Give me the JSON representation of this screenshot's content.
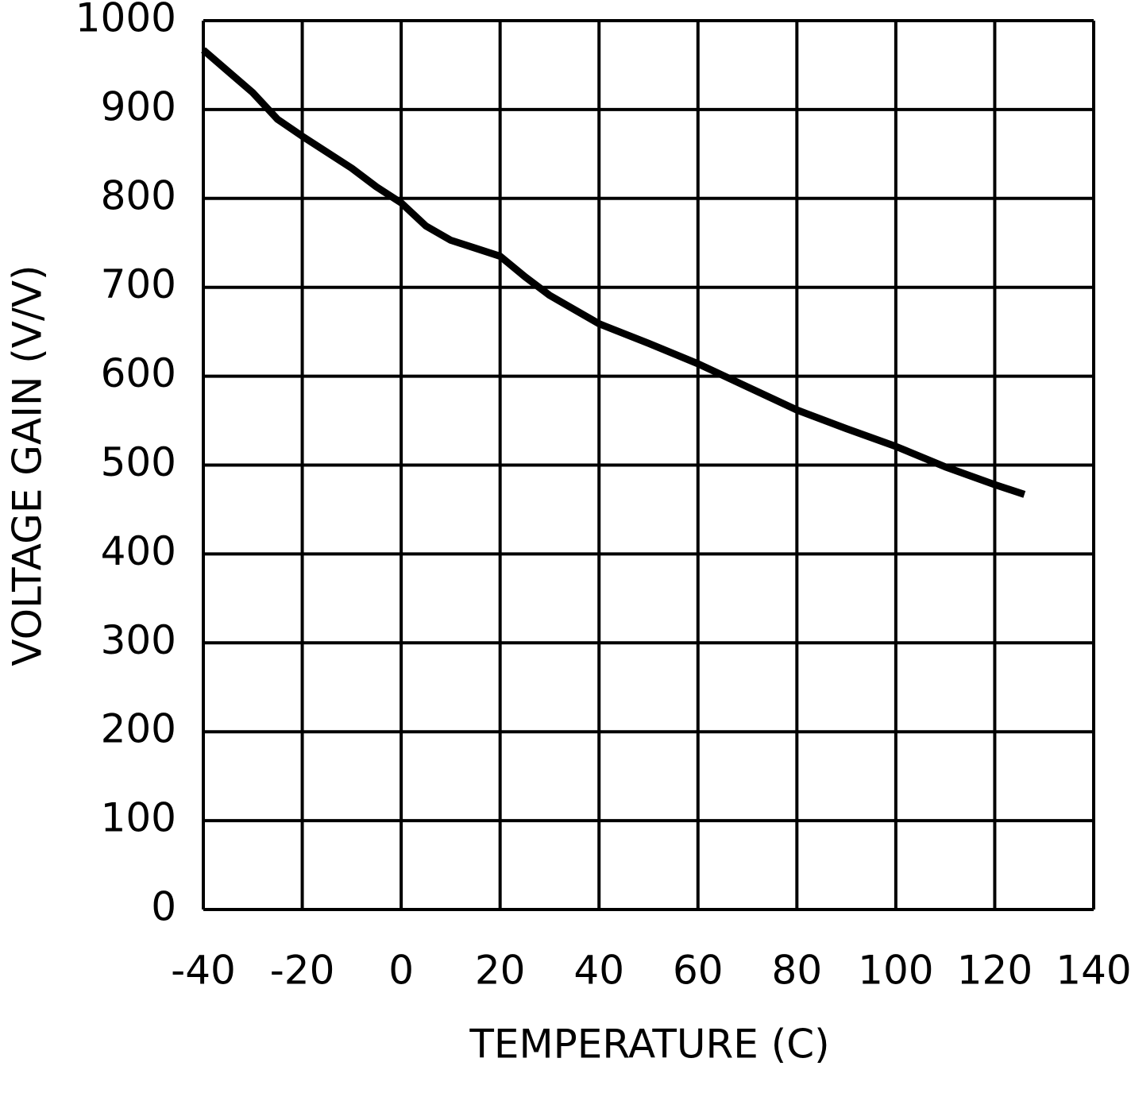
{
  "chart_data": {
    "type": "line",
    "x_label": "TEMPERATURE (C)",
    "y_label": "VOLTAGE GAIN (V/V)",
    "x": [
      -40,
      -35,
      -30,
      -25,
      -20,
      -10,
      -5,
      0,
      5,
      10,
      15,
      20,
      25,
      30,
      40,
      50,
      60,
      70,
      80,
      90,
      100,
      110,
      120,
      126
    ],
    "series": [
      {
        "name": "Voltage gain",
        "color": "#000000",
        "values": [
          967,
          943,
          919,
          889,
          870,
          834,
          813,
          795,
          769,
          753,
          744,
          735,
          712,
          691,
          659,
          637,
          614,
          588,
          562,
          541,
          521,
          498,
          478,
          467
        ]
      }
    ],
    "xlim": [
      -40,
      140
    ],
    "ylim": [
      0,
      1000
    ],
    "xticks": [
      -40,
      -20,
      0,
      20,
      40,
      60,
      80,
      100,
      120,
      140
    ],
    "yticks": [
      0,
      100,
      200,
      300,
      400,
      500,
      600,
      700,
      800,
      900,
      1000
    ],
    "grid": true
  }
}
